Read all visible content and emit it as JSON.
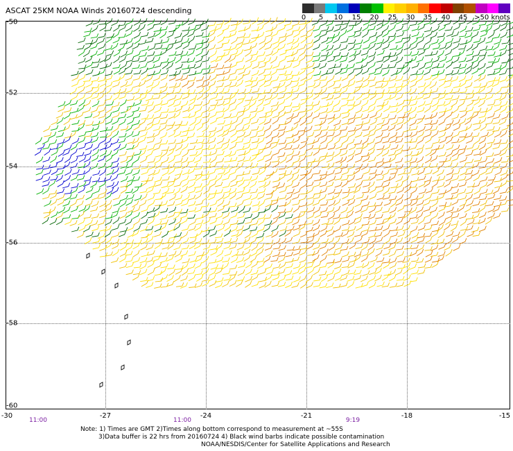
{
  "title": "ASCAT 25KM NOAA Winds 20160724 descending",
  "colorbar": {
    "ticks": [
      "0",
      "5",
      "10",
      "15",
      "20",
      "25",
      "30",
      "35",
      "40",
      "45",
      ">50 knots"
    ],
    "colors": [
      "#2e2e2e",
      "#7a7a7a",
      "#00c8f0",
      "#0070e0",
      "#0000b8",
      "#008000",
      "#00c000",
      "#fff000",
      "#ffd000",
      "#ffb000",
      "#ff7000",
      "#ff0000",
      "#c00000",
      "#804000",
      "#b05000",
      "#c000c0",
      "#ff00ff",
      "#6000c0"
    ]
  },
  "lat_labels": [
    "-50",
    "-52",
    "-54",
    "-56",
    "-58",
    "-60"
  ],
  "lon_labels": [
    "-30",
    "-27",
    "-24",
    "-21",
    "-18",
    "-15"
  ],
  "time_labels": [
    "11:00",
    "11:00",
    "9:19"
  ],
  "footer": {
    "line1": "Note: 1) Times are GMT 2)Times along bottom correspond to measurement at ~55S",
    "line2": "3)Data buffer is 22 hrs from 20160724 4) Black wind barbs indicate possible contamination",
    "line3": "NOAA/NESDIS/Center for Satellite Applications and Research"
  },
  "wind_colors": {
    "blue": "#0000d0",
    "dark_green": "#006400",
    "green": "#00b000",
    "yellow": "#ffe000",
    "gold": "#f0c000",
    "orange": "#e08000",
    "black": "#000000"
  }
}
